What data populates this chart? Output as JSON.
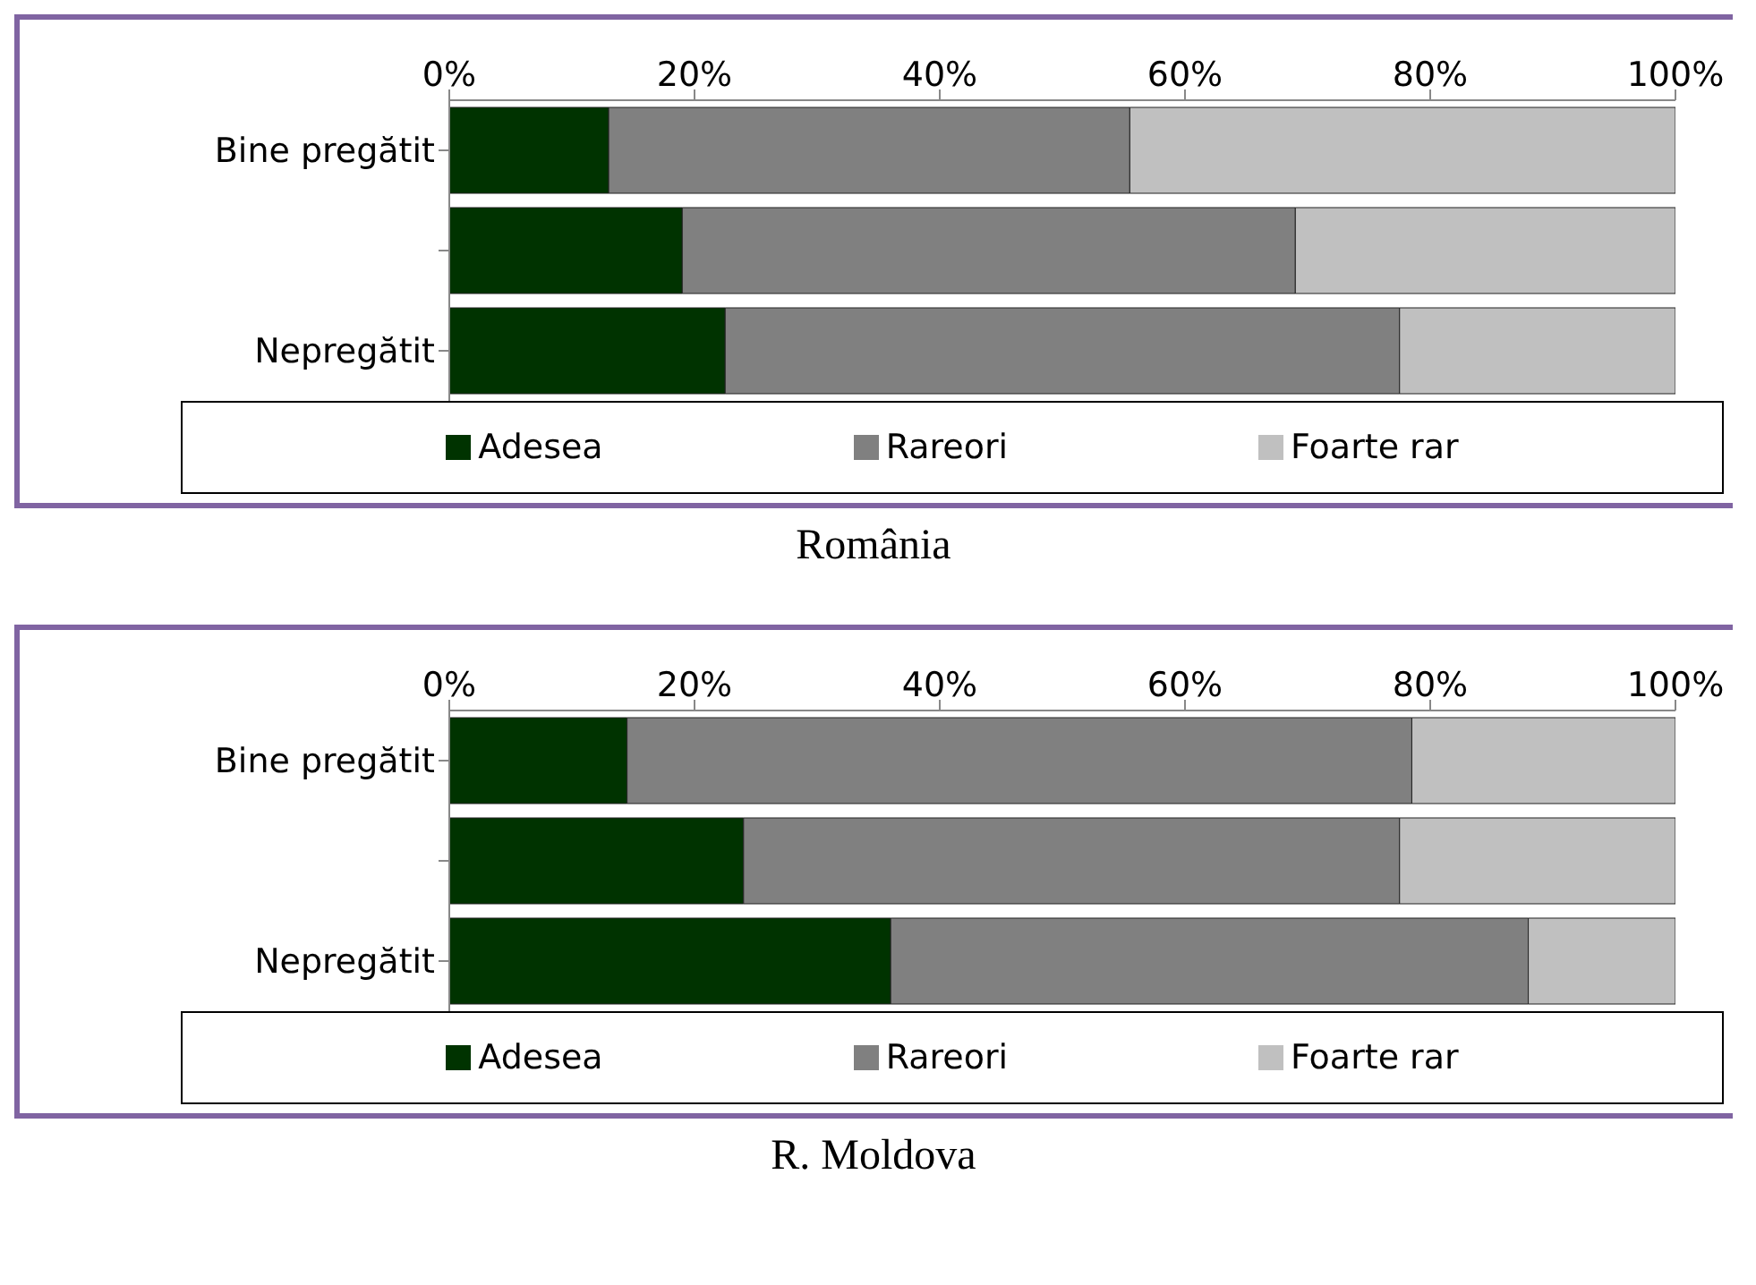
{
  "chart_data": [
    {
      "type": "bar",
      "orientation": "horizontal",
      "stacked": true,
      "title": "România",
      "categories": [
        "Bine pregătit",
        null,
        "Nepregătit"
      ],
      "xlim": [
        0,
        100
      ],
      "xticks": [
        {
          "value": 0,
          "label": "0%"
        },
        {
          "value": 20,
          "label": "20%"
        },
        {
          "value": 40,
          "label": "40%"
        },
        {
          "value": 60,
          "label": "60%"
        },
        {
          "value": 80,
          "label": "80%"
        },
        {
          "value": 100,
          "label": "100%"
        }
      ],
      "legend": "bottom",
      "series": [
        {
          "name": "Adesea",
          "color": "#003300",
          "values": [
            13,
            19,
            22.5
          ]
        },
        {
          "name": "Rareori",
          "color": "#808080",
          "values": [
            42.5,
            50,
            55
          ]
        },
        {
          "name": "Foarte rar",
          "color": "#c0c0c0",
          "values": [
            44.5,
            31,
            22.5
          ]
        }
      ]
    },
    {
      "type": "bar",
      "orientation": "horizontal",
      "stacked": true,
      "title": "R. Moldova",
      "categories": [
        "Bine pregătit",
        null,
        "Nepregătit"
      ],
      "xlim": [
        0,
        100
      ],
      "xticks": [
        {
          "value": 0,
          "label": "0%"
        },
        {
          "value": 20,
          "label": "20%"
        },
        {
          "value": 40,
          "label": "40%"
        },
        {
          "value": 60,
          "label": "60%"
        },
        {
          "value": 80,
          "label": "80%"
        },
        {
          "value": 100,
          "label": "100%"
        }
      ],
      "legend": "bottom",
      "series": [
        {
          "name": "Adesea",
          "color": "#003300",
          "values": [
            14.5,
            24,
            36
          ]
        },
        {
          "name": "Rareori",
          "color": "#808080",
          "values": [
            64,
            53.5,
            52
          ]
        },
        {
          "name": "Foarte rar",
          "color": "#c0c0c0",
          "values": [
            21.5,
            22.5,
            12
          ]
        }
      ]
    }
  ]
}
